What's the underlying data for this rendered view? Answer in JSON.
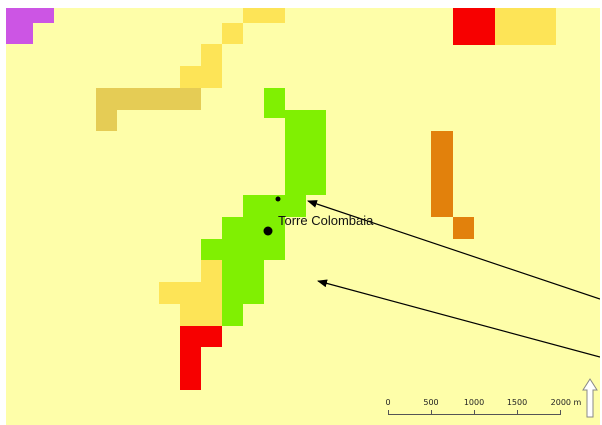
{
  "map": {
    "place_label": "Torre Colombaia",
    "colors": {
      "background": "#fefea9",
      "green": "#80f002",
      "yellow": "#fde457",
      "olive": "#e5cc55",
      "orange": "#e2810c",
      "red": "#f70000",
      "magenta": "#cc55e4",
      "black": "#000000"
    },
    "scalebar": {
      "ticks": [
        "0",
        "500",
        "1000",
        "1500",
        "2000 m"
      ]
    },
    "north_arrow_icon": "north-arrow-icon"
  }
}
